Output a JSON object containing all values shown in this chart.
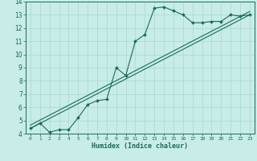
{
  "xlabel": "Humidex (Indice chaleur)",
  "bg_color": "#c8ece8",
  "grid_color": "#b0dbd6",
  "line_color": "#1a6b5a",
  "marker_color": "#1a6b5a",
  "xlim": [
    -0.5,
    23.5
  ],
  "ylim": [
    4,
    14
  ],
  "xticks": [
    0,
    1,
    2,
    3,
    4,
    5,
    6,
    7,
    8,
    9,
    10,
    11,
    12,
    13,
    14,
    15,
    16,
    17,
    18,
    19,
    20,
    21,
    22,
    23
  ],
  "yticks": [
    4,
    5,
    6,
    7,
    8,
    9,
    10,
    11,
    12,
    13,
    14
  ],
  "line1_x": [
    0,
    1,
    2,
    3,
    4,
    5,
    6,
    7,
    8,
    9,
    10,
    11,
    12,
    13,
    14,
    15,
    16,
    17,
    18,
    19,
    20,
    21,
    22,
    23
  ],
  "line1_y": [
    4.4,
    4.8,
    4.1,
    4.3,
    4.3,
    5.2,
    6.2,
    6.5,
    6.6,
    9.0,
    8.4,
    11.0,
    11.5,
    13.5,
    13.6,
    13.3,
    13.0,
    12.4,
    12.4,
    12.5,
    12.5,
    13.0,
    12.9,
    13.0
  ],
  "line2_y_start": 4.4,
  "line2_y_end": 13.0,
  "line3_y_start": 4.65,
  "line3_y_end": 13.25
}
